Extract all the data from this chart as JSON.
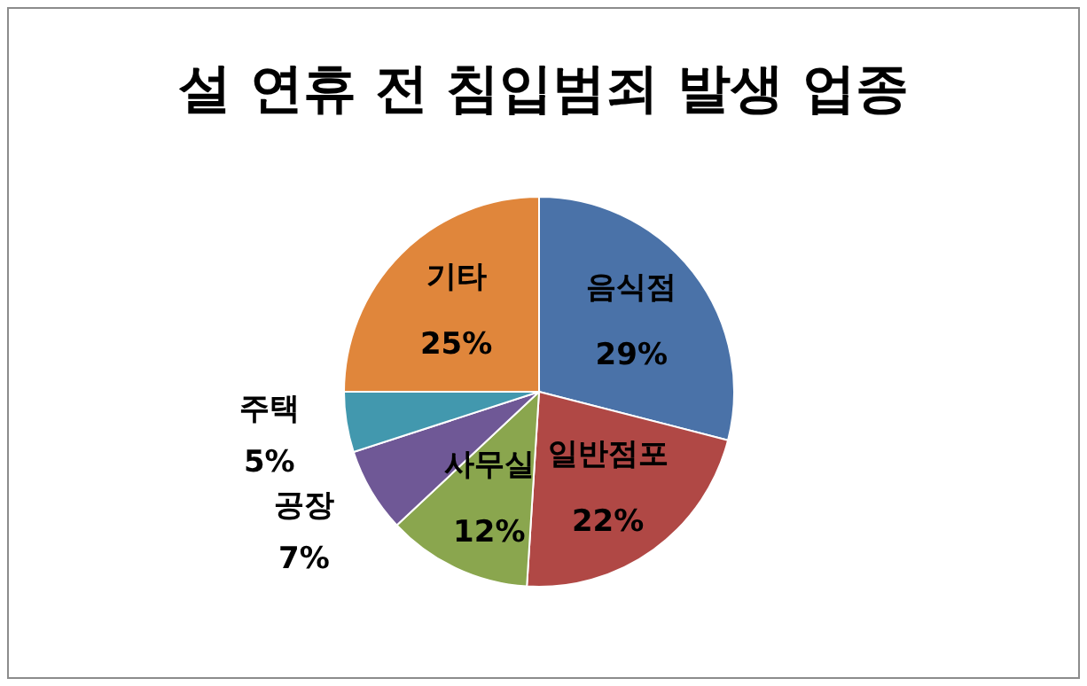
{
  "chart_data": {
    "type": "pie",
    "title": "설 연휴 전 침입범죄 발생 업종",
    "categories": [
      "음식점",
      "일반점포",
      "사무실",
      "공장",
      "주택",
      "기타"
    ],
    "values": [
      29,
      22,
      12,
      7,
      5,
      25
    ],
    "value_labels": [
      "29%",
      "22%",
      "12%",
      "7%",
      "5%",
      "25%"
    ],
    "colors": [
      "#4a72a8",
      "#b04845",
      "#8aa64e",
      "#6f5896",
      "#4298ae",
      "#e0863b"
    ]
  }
}
